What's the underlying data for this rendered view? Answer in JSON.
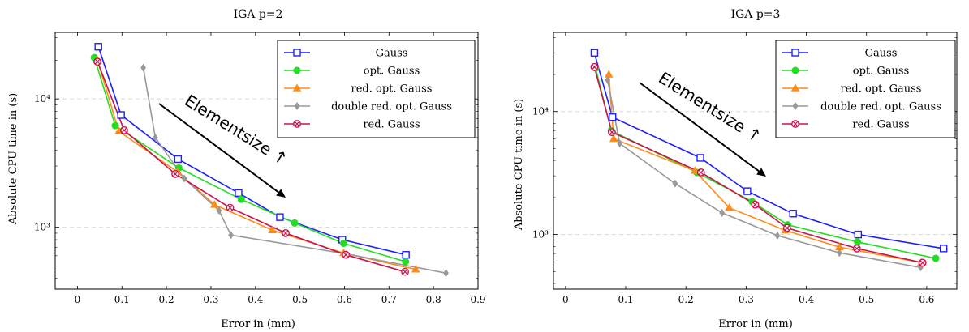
{
  "chart_data": [
    {
      "type": "line",
      "title": "IGA p=2",
      "xlabel": "Error in (mm)",
      "ylabel": "Absolute CPU time in (s)",
      "xlim": [
        -0.05,
        0.9
      ],
      "ylim": [
        330,
        33000
      ],
      "yscale": "log",
      "xticks": [
        0,
        0.1,
        0.2,
        0.3,
        0.4,
        0.5,
        0.6,
        0.7,
        0.8,
        0.9
      ],
      "xtick_labels": [
        "0",
        "0.1",
        "0.2",
        "0.3",
        "0.4",
        "0.5",
        "0.6",
        "0.7",
        "0.8",
        "0.9"
      ],
      "yticks": [
        1000,
        10000
      ],
      "ytick_labels": [
        "10³",
        "10⁴"
      ],
      "grid": "horizontal-dashed",
      "legend_position": "top-right",
      "annotation": {
        "text": "Elementsize ↑",
        "x1": 0.18,
        "y1": 11000,
        "x2": 0.47,
        "y2": 2300
      },
      "series": [
        {
          "name": "Gauss",
          "color": "#1f1fff",
          "marker": "square",
          "x": [
            0.047,
            0.098,
            0.226,
            0.362,
            0.455,
            0.595,
            0.738
          ],
          "y": [
            25500,
            7500,
            3400,
            1850,
            1200,
            800,
            610
          ]
        },
        {
          "name": "opt. Gauss",
          "color": "#22dd22",
          "marker": "circle",
          "x": [
            0.038,
            0.085,
            0.228,
            0.368,
            0.488,
            0.598,
            0.737
          ],
          "y": [
            21000,
            6200,
            2900,
            1650,
            1080,
            750,
            540
          ]
        },
        {
          "name": "red. opt. Gauss",
          "color": "#ff8c1a",
          "marker": "triangle",
          "x": [
            0.045,
            0.093,
            0.225,
            0.308,
            0.438,
            0.598,
            0.76
          ],
          "y": [
            20000,
            5600,
            2700,
            1500,
            950,
            630,
            470
          ]
        },
        {
          "name": "double red. opt. Gauss",
          "color": "#999999",
          "marker": "diamond",
          "x": [
            0.148,
            0.175,
            0.24,
            0.318,
            0.345,
            0.605,
            0.828
          ],
          "y": [
            17500,
            5000,
            2400,
            1350,
            870,
            620,
            440
          ]
        },
        {
          "name": "red. Gauss",
          "color": "#c8134b",
          "marker": "circle-x",
          "x": [
            0.045,
            0.105,
            0.22,
            0.343,
            0.468,
            0.603,
            0.736
          ],
          "y": [
            19500,
            5700,
            2600,
            1420,
            900,
            610,
            450
          ]
        }
      ]
    },
    {
      "type": "line",
      "title": "IGA p=3",
      "xlabel": "Error in (mm)",
      "ylabel": "Absolute CPU time in (s)",
      "xlim": [
        -0.02,
        0.65
      ],
      "ylim": [
        360,
        44000
      ],
      "yscale": "log",
      "xticks": [
        0,
        0.1,
        0.2,
        0.3,
        0.4,
        0.5,
        0.6
      ],
      "xtick_labels": [
        "0",
        "0.1",
        "0.2",
        "0.3",
        "0.4",
        "0.5",
        "0.6"
      ],
      "yticks": [
        1000,
        10000
      ],
      "ytick_labels": [
        "10³",
        "10⁴"
      ],
      "grid": "horizontal-dashed",
      "legend_position": "top-right",
      "annotation": {
        "text": "Elementsize ↑",
        "x1": 0.14,
        "y1": 15000,
        "x2": 0.35,
        "y2": 4500
      },
      "series": [
        {
          "name": "Gauss",
          "color": "#1f1fff",
          "marker": "square",
          "x": [
            0.048,
            0.078,
            0.224,
            0.302,
            0.378,
            0.486,
            0.628
          ],
          "y": [
            30000,
            9000,
            4200,
            2250,
            1480,
            1000,
            770
          ]
        },
        {
          "name": "opt. Gauss",
          "color": "#22dd22",
          "marker": "circle",
          "x": [
            0.05,
            0.076,
            0.218,
            0.31,
            0.369,
            0.485,
            0.615
          ],
          "y": [
            22500,
            7000,
            3200,
            1850,
            1200,
            870,
            640
          ]
        },
        {
          "name": "red. opt. Gauss",
          "color": "#ff8c1a",
          "marker": "triangle",
          "x": [
            0.072,
            0.08,
            0.215,
            0.272,
            0.365,
            0.455,
            0.591
          ],
          "y": [
            20000,
            6000,
            3300,
            1650,
            1080,
            790,
            590
          ]
        },
        {
          "name": "double red. opt. Gauss",
          "color": "#999999",
          "marker": "diamond",
          "x": [
            0.07,
            0.09,
            0.182,
            0.26,
            0.352,
            0.455,
            0.59
          ],
          "y": [
            18000,
            5500,
            2600,
            1500,
            980,
            710,
            540
          ]
        },
        {
          "name": "red. Gauss",
          "color": "#c8134b",
          "marker": "circle-x",
          "x": [
            0.048,
            0.077,
            0.225,
            0.315,
            0.368,
            0.484,
            0.593
          ],
          "y": [
            23000,
            6800,
            3200,
            1750,
            1130,
            770,
            590
          ]
        }
      ]
    }
  ]
}
